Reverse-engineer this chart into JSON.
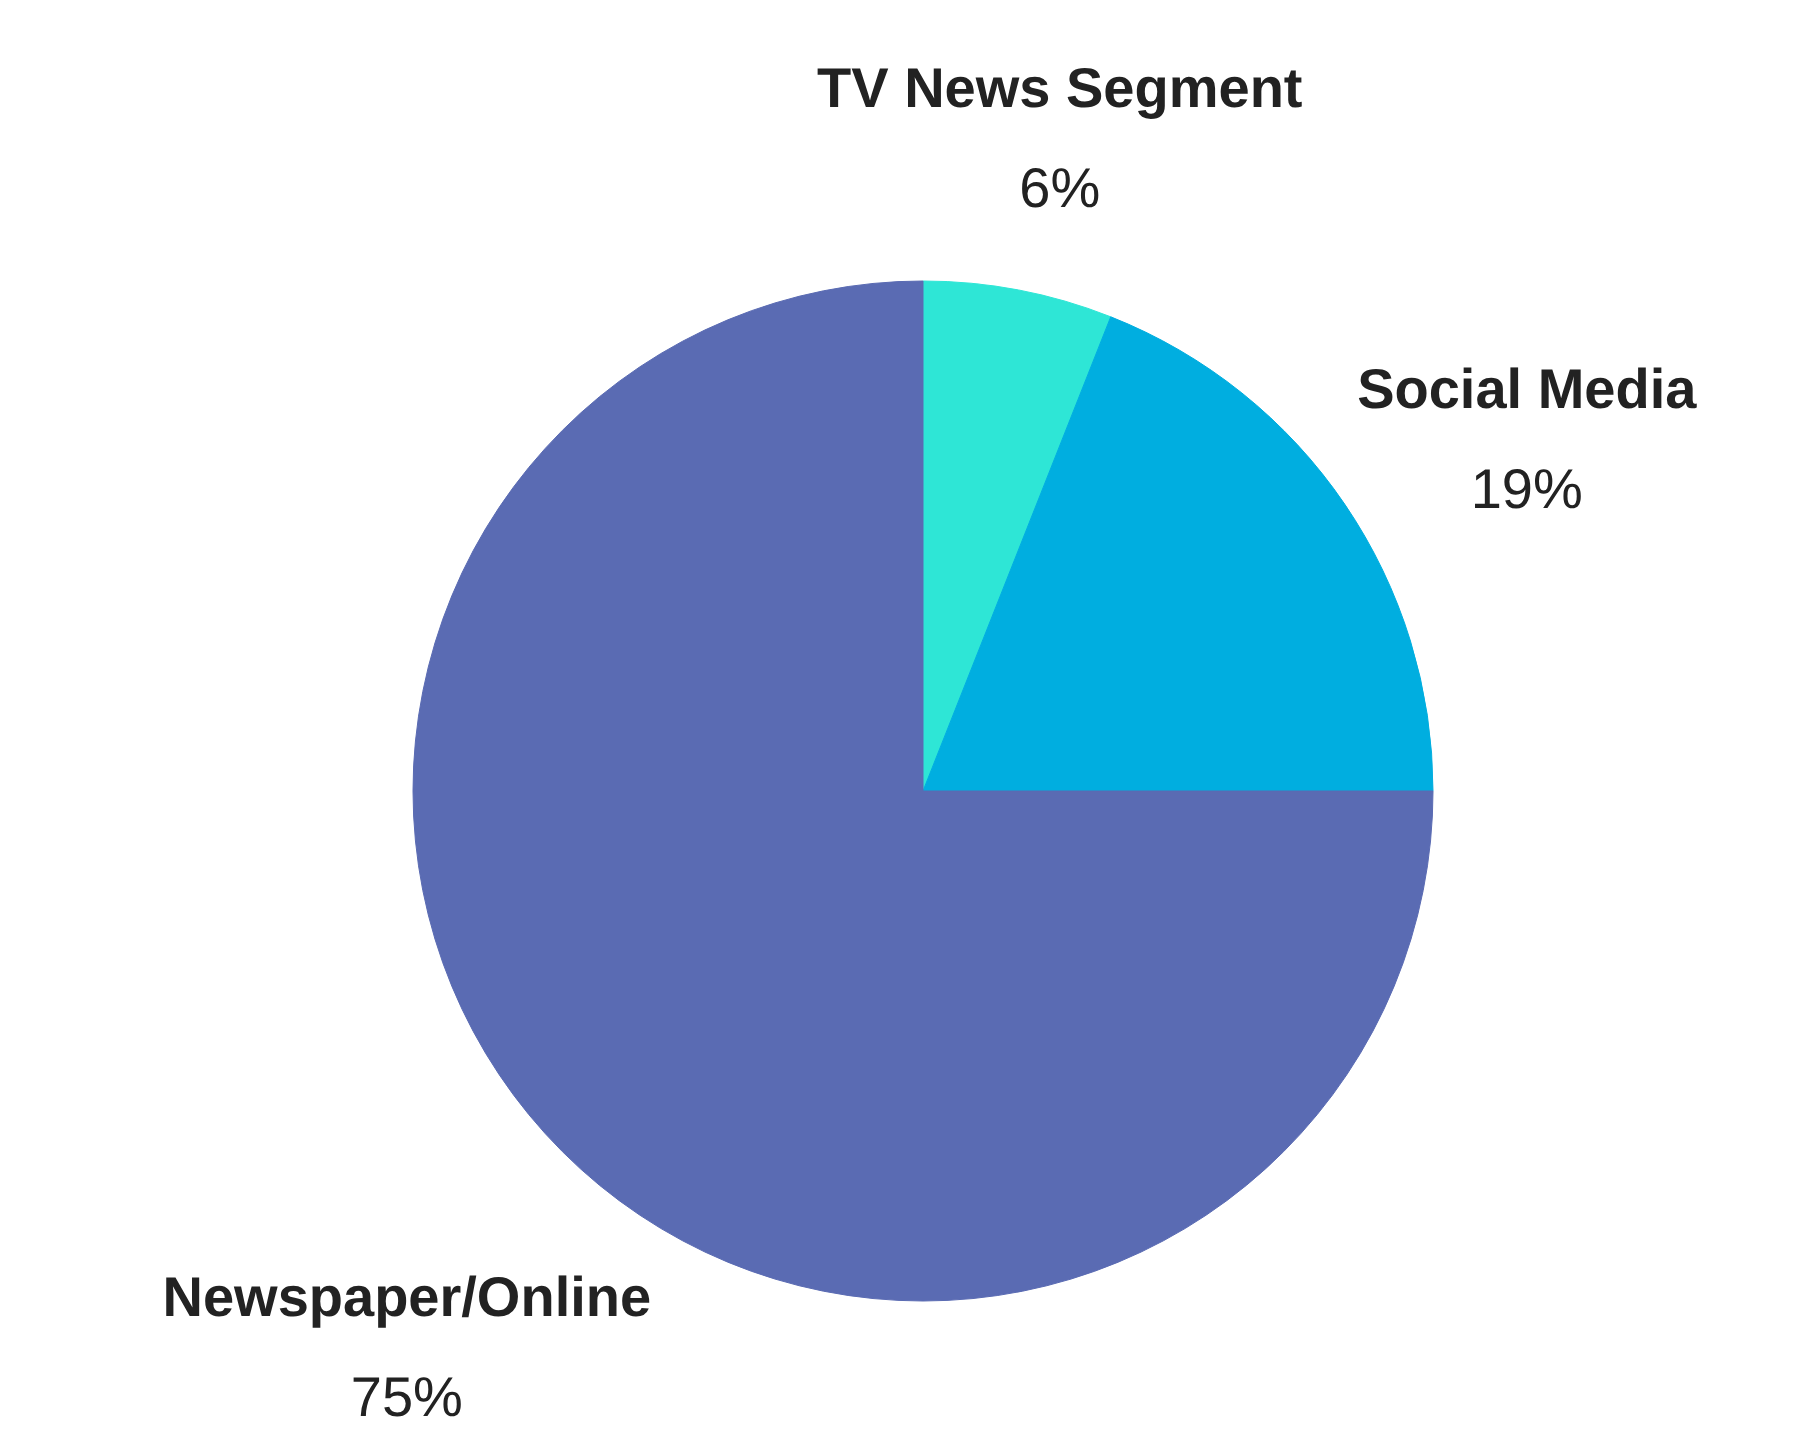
{
  "chart_data": {
    "type": "pie",
    "categories": [
      "TV News Segment",
      "Social Media",
      "Newspaper/Online"
    ],
    "values": [
      6,
      19,
      75
    ],
    "colors": [
      "#2ee6d6",
      "#00aee0",
      "#5a6bb3"
    ],
    "value_labels": [
      "6%",
      "19%",
      "75%"
    ]
  }
}
